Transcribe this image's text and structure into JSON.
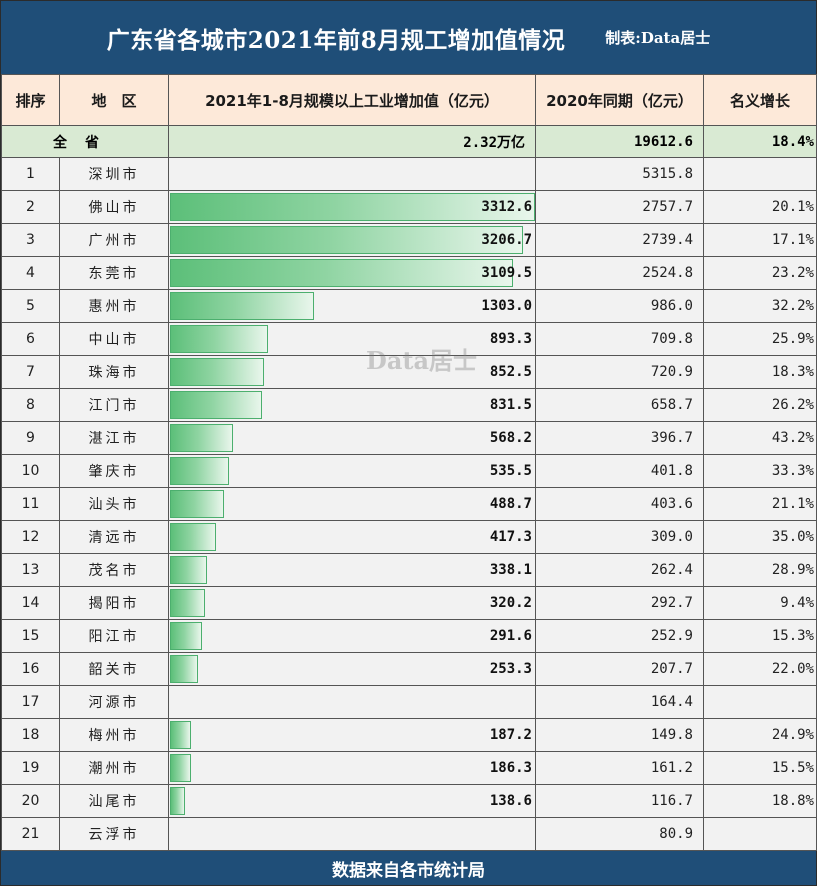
{
  "header": {
    "title": "广东省各城市2021年前8月规工增加值情况",
    "credit": "制表:Data居士"
  },
  "columns": {
    "rank": "排序",
    "area": "地　区",
    "value": "2021年1-8月规模以上工业增加值（亿元）",
    "prev": "2020年同期（亿元）",
    "growth": "名义增长"
  },
  "total": {
    "label": "全省",
    "value": "2.32万亿",
    "prev": "19612.6",
    "growth": "18.4%"
  },
  "rows": [
    {
      "rank": "1",
      "area": "深圳市",
      "value": "",
      "prev": "5315.8",
      "growth": ""
    },
    {
      "rank": "2",
      "area": "佛山市",
      "value": "3312.6",
      "prev": "2757.7",
      "growth": "20.1%"
    },
    {
      "rank": "3",
      "area": "广州市",
      "value": "3206.7",
      "prev": "2739.4",
      "growth": "17.1%"
    },
    {
      "rank": "4",
      "area": "东莞市",
      "value": "3109.5",
      "prev": "2524.8",
      "growth": "23.2%"
    },
    {
      "rank": "5",
      "area": "惠州市",
      "value": "1303.0",
      "prev": "986.0",
      "growth": "32.2%"
    },
    {
      "rank": "6",
      "area": "中山市",
      "value": "893.3",
      "prev": "709.8",
      "growth": "25.9%"
    },
    {
      "rank": "7",
      "area": "珠海市",
      "value": "852.5",
      "prev": "720.9",
      "growth": "18.3%"
    },
    {
      "rank": "8",
      "area": "江门市",
      "value": "831.5",
      "prev": "658.7",
      "growth": "26.2%"
    },
    {
      "rank": "9",
      "area": "湛江市",
      "value": "568.2",
      "prev": "396.7",
      "growth": "43.2%"
    },
    {
      "rank": "10",
      "area": "肇庆市",
      "value": "535.5",
      "prev": "401.8",
      "growth": "33.3%"
    },
    {
      "rank": "11",
      "area": "汕头市",
      "value": "488.7",
      "prev": "403.6",
      "growth": "21.1%"
    },
    {
      "rank": "12",
      "area": "清远市",
      "value": "417.3",
      "prev": "309.0",
      "growth": "35.0%"
    },
    {
      "rank": "13",
      "area": "茂名市",
      "value": "338.1",
      "prev": "262.4",
      "growth": "28.9%"
    },
    {
      "rank": "14",
      "area": "揭阳市",
      "value": "320.2",
      "prev": "292.7",
      "growth": "9.4%"
    },
    {
      "rank": "15",
      "area": "阳江市",
      "value": "291.6",
      "prev": "252.9",
      "growth": "15.3%"
    },
    {
      "rank": "16",
      "area": "韶关市",
      "value": "253.3",
      "prev": "207.7",
      "growth": "22.0%"
    },
    {
      "rank": "17",
      "area": "河源市",
      "value": "",
      "prev": "164.4",
      "growth": ""
    },
    {
      "rank": "18",
      "area": "梅州市",
      "value": "187.2",
      "prev": "149.8",
      "growth": "24.9%"
    },
    {
      "rank": "19",
      "area": "潮州市",
      "value": "186.3",
      "prev": "161.2",
      "growth": "15.5%"
    },
    {
      "rank": "20",
      "area": "汕尾市",
      "value": "138.6",
      "prev": "116.7",
      "growth": "18.8%"
    },
    {
      "rank": "21",
      "area": "云浮市",
      "value": "",
      "prev": "80.9",
      "growth": ""
    }
  ],
  "bar_color": "#5cbf79",
  "header_bg": "#1f4e78",
  "watermark": "Data居士",
  "footer": "数据来自各市统计局"
}
